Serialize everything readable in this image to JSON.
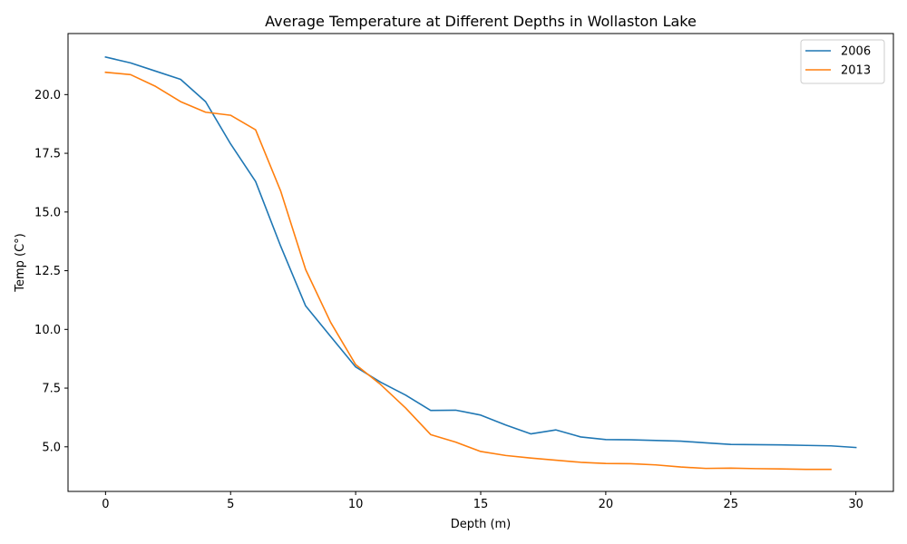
{
  "chart_data": {
    "type": "line",
    "title": "Average Temperature at Different Depths in Wollaston Lake",
    "xlabel": "Depth (m)",
    "ylabel": "Temp (C°)",
    "xlim": [
      -1.5,
      31.5
    ],
    "ylim": [
      3.1,
      22.6
    ],
    "xticks": [
      0,
      5,
      10,
      15,
      20,
      25,
      30
    ],
    "xtick_labels": [
      "0",
      "5",
      "10",
      "15",
      "20",
      "25",
      "30"
    ],
    "yticks": [
      5.0,
      7.5,
      10.0,
      12.5,
      15.0,
      17.5,
      20.0
    ],
    "ytick_labels": [
      "5.0",
      "7.5",
      "10.0",
      "12.5",
      "15.0",
      "17.5",
      "20.0"
    ],
    "grid": false,
    "legend_position": "top-right",
    "series": [
      {
        "name": "2006",
        "color": "#1f77b4",
        "x": [
          0,
          1,
          2,
          3,
          4,
          5,
          6,
          7,
          8,
          9,
          10,
          11,
          12,
          13,
          14,
          15,
          16,
          17,
          18,
          19,
          20,
          21,
          22,
          23,
          24,
          25,
          26,
          27,
          28,
          29,
          30
        ],
        "y": [
          21.6,
          21.35,
          21.0,
          20.65,
          19.7,
          17.9,
          16.3,
          13.55,
          11.0,
          9.7,
          8.4,
          7.75,
          7.2,
          6.55,
          6.56,
          6.35,
          5.93,
          5.55,
          5.72,
          5.42,
          5.31,
          5.3,
          5.27,
          5.24,
          5.17,
          5.1,
          5.09,
          5.08,
          5.06,
          5.04,
          4.97
        ]
      },
      {
        "name": "2013",
        "color": "#ff7f0e",
        "x": [
          0,
          1,
          2,
          3,
          4,
          5,
          6,
          7,
          8,
          9,
          10,
          11,
          12,
          13,
          14,
          15,
          16,
          17,
          18,
          19,
          20,
          21,
          22,
          23,
          24,
          25,
          26,
          27,
          28,
          29
        ],
        "y": [
          20.95,
          20.85,
          20.35,
          19.7,
          19.25,
          19.12,
          18.5,
          15.9,
          12.55,
          10.3,
          8.5,
          7.65,
          6.65,
          5.52,
          5.2,
          4.8,
          4.63,
          4.52,
          4.43,
          4.34,
          4.29,
          4.28,
          4.23,
          4.14,
          4.08,
          4.09,
          4.07,
          4.06,
          4.04,
          4.04
        ]
      }
    ]
  }
}
